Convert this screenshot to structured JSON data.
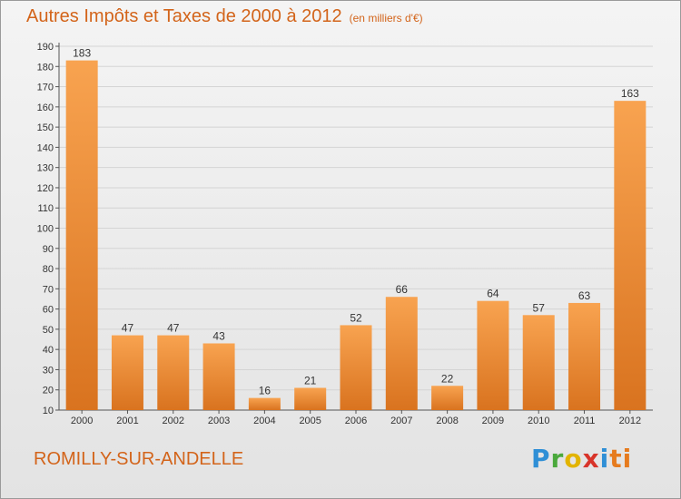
{
  "header": {
    "title": "Autres Impôts et Taxes de 2000 à 2012",
    "subtitle": "(en milliers d'€)"
  },
  "footer": {
    "location": "ROMILLY-SUR-ANDELLE",
    "logo_text": "Proxiti"
  },
  "colors": {
    "title": "#d3641a",
    "bar_top": "#f8a350",
    "bar_bottom": "#d9731f"
  },
  "chart_data": {
    "type": "bar",
    "title": "Autres Impôts et Taxes de 2000 à 2012",
    "subtitle": "(en milliers d'€)",
    "categories": [
      "2000",
      "2001",
      "2002",
      "2003",
      "2004",
      "2005",
      "2006",
      "2007",
      "2008",
      "2009",
      "2010",
      "2011",
      "2012"
    ],
    "values": [
      183,
      47,
      47,
      43,
      16,
      21,
      52,
      66,
      22,
      64,
      57,
      63,
      163
    ],
    "ylim": [
      10,
      190
    ],
    "yticks": [
      10,
      20,
      30,
      40,
      50,
      60,
      70,
      80,
      90,
      100,
      110,
      120,
      130,
      140,
      150,
      160,
      170,
      180,
      190
    ],
    "grid": true,
    "data_labels": true
  }
}
